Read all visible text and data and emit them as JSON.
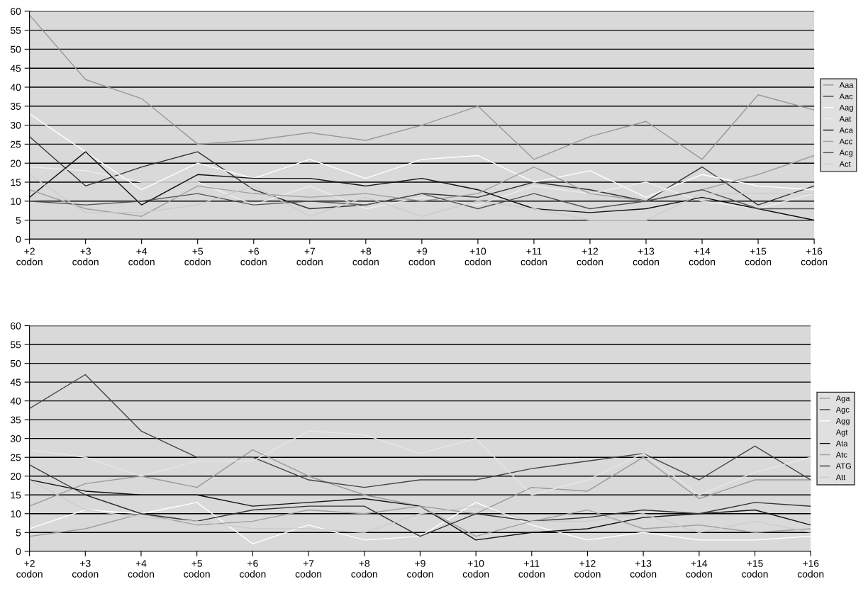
{
  "chart_data": [
    {
      "type": "line",
      "categories": [
        "+2\ncodon",
        "+3\ncodon",
        "+4\ncodon",
        "+5\ncodon",
        "+6\ncodon",
        "+7\ncodon",
        "+8\ncodon",
        "+9\ncodon",
        "+10\ncodon",
        "+11\ncodon",
        "+12\ncodon",
        "+13\ncodon",
        "+14\ncodon",
        "+15\ncodon",
        "+16\ncodon"
      ],
      "ylim": [
        0,
        60
      ],
      "yticks": [
        0,
        5,
        10,
        15,
        20,
        25,
        30,
        35,
        40,
        45,
        50,
        55,
        60
      ],
      "grid": "y",
      "legend": "right",
      "marker": "none",
      "line_style": "solid",
      "series": [
        {
          "name": "Aaa",
          "color": "#999999",
          "values": [
            59,
            42,
            37,
            25,
            26,
            28,
            26,
            30,
            35,
            21,
            27,
            31,
            21,
            38,
            34
          ]
        },
        {
          "name": "Aac",
          "color": "#333333",
          "values": [
            27,
            14,
            19,
            23,
            13,
            8,
            9,
            12,
            11,
            15,
            13,
            10,
            19,
            9,
            14
          ]
        },
        {
          "name": "Aag",
          "color": "#ffffff",
          "values": [
            33,
            23,
            13,
            20,
            16,
            21,
            16,
            21,
            22,
            15,
            18,
            11,
            17,
            14,
            13
          ]
        },
        {
          "name": "Aat",
          "color": "#eeeeee",
          "values": [
            19,
            18,
            15,
            15,
            9,
            14,
            8,
            11,
            9,
            14,
            12,
            15,
            10,
            8,
            12
          ]
        },
        {
          "name": "Aca",
          "color": "#111111",
          "values": [
            11,
            23,
            9,
            17,
            16,
            16,
            14,
            16,
            13,
            8,
            7,
            8,
            11,
            8,
            5
          ]
        },
        {
          "name": "Acc",
          "color": "#a0a0a0",
          "values": [
            13,
            8,
            6,
            14,
            12,
            11,
            12,
            10,
            12,
            19,
            12,
            10,
            13,
            17,
            22
          ]
        },
        {
          "name": "Acg",
          "color": "#555555",
          "values": [
            10,
            9,
            10,
            12,
            9,
            10,
            9,
            12,
            8,
            12,
            8,
            10,
            13,
            8,
            8
          ]
        },
        {
          "name": "Act",
          "color": "#cccccc",
          "values": [
            17,
            7,
            7,
            9,
            14,
            6,
            11,
            6,
            10,
            8,
            5,
            5,
            12,
            12,
            12
          ]
        }
      ]
    },
    {
      "type": "line",
      "categories": [
        "+2\ncodon",
        "+3\ncodon",
        "+4\ncodon",
        "+5\ncodon",
        "+6\ncodon",
        "+7\ncodon",
        "+8\ncodon",
        "+9\ncodon",
        "+10\ncodon",
        "+11\ncodon",
        "+12\ncodon",
        "+13\ncodon",
        "+14\ncodon",
        "+15\ncodon",
        "+16\ncodon"
      ],
      "ylim": [
        0,
        60
      ],
      "yticks": [
        0,
        5,
        10,
        15,
        20,
        25,
        30,
        35,
        40,
        45,
        50,
        55,
        60
      ],
      "grid": "y",
      "legend": "right",
      "marker": "none",
      "line_style": "solid",
      "series": [
        {
          "name": "Aga",
          "color": "#999999",
          "values": [
            12,
            18,
            20,
            17,
            27,
            20,
            15,
            12,
            10,
            17,
            16,
            25,
            14,
            19,
            19
          ]
        },
        {
          "name": "Agc",
          "color": "#444444",
          "values": [
            38,
            47,
            32,
            25,
            25,
            19,
            17,
            19,
            19,
            22,
            24,
            26,
            19,
            28,
            19
          ]
        },
        {
          "name": "Agg",
          "color": "#ffffff",
          "values": [
            6,
            11,
            10,
            13,
            2,
            7,
            3,
            4,
            13,
            7,
            3,
            5,
            3,
            3,
            4
          ]
        },
        {
          "name": "Agt",
          "color": "#e6e6e6",
          "values": [
            27,
            25,
            20,
            24,
            24,
            32,
            31,
            26,
            30,
            15,
            19,
            26,
            15,
            21,
            25
          ]
        },
        {
          "name": "Ata",
          "color": "#111111",
          "values": [
            19,
            16,
            15,
            15,
            12,
            13,
            14,
            12,
            3,
            5,
            6,
            9,
            10,
            11,
            7
          ]
        },
        {
          "name": "Atc",
          "color": "#a0a0a0",
          "values": [
            4,
            6,
            10,
            7,
            8,
            11,
            10,
            12,
            4,
            8,
            11,
            6,
            7,
            5,
            6
          ]
        },
        {
          "name": "ATG",
          "color": "#333333",
          "values": [
            23,
            15,
            10,
            8,
            11,
            12,
            12,
            4,
            10,
            8,
            9,
            11,
            10,
            13,
            12
          ]
        },
        {
          "name": "Att",
          "color": "#cccccc",
          "values": [
            19,
            11,
            9,
            8,
            6,
            6,
            5,
            10,
            12,
            8,
            8,
            10,
            5,
            8,
            5
          ]
        }
      ]
    }
  ]
}
